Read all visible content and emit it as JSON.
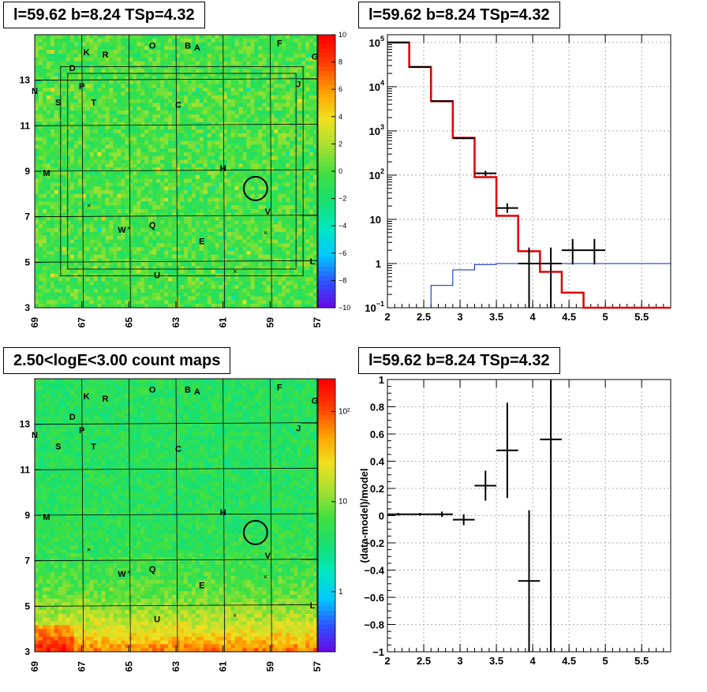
{
  "panels": {
    "tl": {
      "title": "l=59.62 b=8.24 TSp=4.32"
    },
    "tr": {
      "title": "l=59.62 b=8.24 TSp=4.32"
    },
    "bl": {
      "title": "2.50<logE<3.00 count maps"
    },
    "br": {
      "title": "l=59.62 b=8.24 TSp=4.32"
    }
  },
  "chart_data": [
    {
      "type": "heatmap",
      "id": "residual-map",
      "x_ticks": [
        "69",
        "67",
        "65",
        "63",
        "61",
        "59",
        "57"
      ],
      "xlim": [
        69,
        57
      ],
      "y_ticks": [
        "3",
        "5",
        "7",
        "9",
        "11",
        "13"
      ],
      "ylim": [
        3,
        15
      ],
      "colorbar_ticks": [
        "10",
        "8",
        "6",
        "4",
        "2",
        "0",
        "−2",
        "−4",
        "−6",
        "−8",
        "−10"
      ],
      "colorbar_range": [
        -10,
        10
      ],
      "color_scale": [
        "#7000e0",
        "#3050ff",
        "#00c8ff",
        "#00e8c0",
        "#18e070",
        "#40e040",
        "#a8e030",
        "#f0e020",
        "#ffa000",
        "#ff4000",
        "#ff0000"
      ],
      "source_labels": [
        {
          "t": "K",
          "l": 66.8,
          "b": 14.1
        },
        {
          "t": "R",
          "l": 66.0,
          "b": 14.0
        },
        {
          "t": "O",
          "l": 64.0,
          "b": 14.4
        },
        {
          "t": "B",
          "l": 62.5,
          "b": 14.4
        },
        {
          "t": "A",
          "l": 62.1,
          "b": 14.3
        },
        {
          "t": "F",
          "l": 58.6,
          "b": 14.5
        },
        {
          "t": "G",
          "l": 57.1,
          "b": 13.9
        },
        {
          "t": "D",
          "l": 67.4,
          "b": 13.4
        },
        {
          "t": "P",
          "l": 67.0,
          "b": 12.6
        },
        {
          "t": "N",
          "l": 69.0,
          "b": 12.4
        },
        {
          "t": "J",
          "l": 57.8,
          "b": 12.7
        },
        {
          "t": "S",
          "l": 68.0,
          "b": 11.9
        },
        {
          "t": "T",
          "l": 66.5,
          "b": 11.9
        },
        {
          "t": "C",
          "l": 62.9,
          "b": 11.8
        },
        {
          "t": "H",
          "l": 61.0,
          "b": 9.0
        },
        {
          "t": "M",
          "l": 68.5,
          "b": 8.8
        },
        {
          "t": "V",
          "l": 59.1,
          "b": 7.1
        },
        {
          "t": "W",
          "l": 65.3,
          "b": 6.3
        },
        {
          "t": "Q",
          "l": 64.0,
          "b": 6.5
        },
        {
          "t": "E",
          "l": 61.9,
          "b": 5.8
        },
        {
          "t": "L",
          "l": 57.2,
          "b": 4.9
        },
        {
          "t": "U",
          "l": 63.8,
          "b": 4.3
        }
      ],
      "x_markers": [
        {
          "l": 66.7,
          "b": 7.5
        },
        {
          "l": 65.0,
          "b": 6.5
        },
        {
          "l": 60.5,
          "b": 4.6
        },
        {
          "l": 59.2,
          "b": 6.3
        }
      ],
      "circle": {
        "l": 59.62,
        "b": 8.24,
        "r": 0.5
      },
      "roi_outer": [
        67.9,
        57.6,
        4.4,
        13.6
      ],
      "roi_inner": [
        67.6,
        57.9,
        4.7,
        13.3
      ]
    },
    {
      "type": "line",
      "id": "spectrum",
      "xlim": [
        2,
        5.9
      ],
      "ylim": [
        0.1,
        150000
      ],
      "y_scale": "log",
      "x_ticks": [
        "2",
        "2.5",
        "3",
        "3.5",
        "4",
        "4.5",
        "5",
        "5.5"
      ],
      "y_tick_labels": [
        "10^-1",
        "1",
        "10",
        "10^2",
        "10^3",
        "10^4",
        "10^5"
      ],
      "grid": true,
      "model_steps": {
        "edges": [
          2.0,
          2.3,
          2.6,
          2.9,
          3.2,
          3.5,
          3.8,
          4.1,
          4.4,
          4.7,
          5.9
        ],
        "values": [
          100000,
          28000,
          4700,
          700,
          90,
          12,
          1.9,
          0.65,
          0.22,
          0.1
        ]
      },
      "background_steps": {
        "edges": [
          2.6,
          2.9,
          3.2,
          3.5,
          5.9
        ],
        "values": [
          0.32,
          0.72,
          0.95,
          1.0
        ]
      },
      "data_points": [
        {
          "x": 2.15,
          "xerr": 0.15,
          "y": 100000,
          "lo": 100000,
          "hi": 100000
        },
        {
          "x": 2.45,
          "xerr": 0.15,
          "y": 28000,
          "lo": 28000,
          "hi": 28000
        },
        {
          "x": 2.75,
          "xerr": 0.15,
          "y": 4700,
          "lo": 4700,
          "hi": 4700
        },
        {
          "x": 3.05,
          "xerr": 0.15,
          "y": 680,
          "lo": 650,
          "hi": 720
        },
        {
          "x": 3.35,
          "xerr": 0.15,
          "y": 110,
          "lo": 95,
          "hi": 125
        },
        {
          "x": 3.65,
          "xerr": 0.15,
          "y": 18,
          "lo": 14,
          "hi": 23
        },
        {
          "x": 3.95,
          "xerr": 0.15,
          "y": 1,
          "lo": 0.1,
          "hi": 2.3
        },
        {
          "x": 4.25,
          "xerr": 0.15,
          "y": 1,
          "lo": 0.1,
          "hi": 2.3
        },
        {
          "x": 4.55,
          "xerr": 0.15,
          "y": 2,
          "lo": 0.95,
          "hi": 3.6
        },
        {
          "x": 4.85,
          "xerr": 0.15,
          "y": 2,
          "lo": 0.95,
          "hi": 3.6
        }
      ]
    },
    {
      "type": "heatmap",
      "id": "count-map",
      "x_ticks": [
        "69",
        "67",
        "65",
        "63",
        "61",
        "59",
        "57"
      ],
      "xlim": [
        69,
        57
      ],
      "y_ticks": [
        "3",
        "5",
        "7",
        "9",
        "11",
        "13"
      ],
      "ylim": [
        3,
        15
      ],
      "colorbar_labels": [
        {
          "t": "10²",
          "f": 0.12
        },
        {
          "t": "10",
          "f": 0.45
        },
        {
          "t": "1",
          "f": 0.78
        }
      ],
      "color_scale": [
        "#7000e0",
        "#3050ff",
        "#00c8ff",
        "#00e8c0",
        "#18e070",
        "#40e040",
        "#a8e030",
        "#f0e020",
        "#ffa000",
        "#ff4000",
        "#ff0000"
      ],
      "source_labels": [
        {
          "t": "K",
          "l": 66.8,
          "b": 14.1
        },
        {
          "t": "R",
          "l": 66.0,
          "b": 14.0
        },
        {
          "t": "O",
          "l": 64.0,
          "b": 14.4
        },
        {
          "t": "B",
          "l": 62.5,
          "b": 14.4
        },
        {
          "t": "A",
          "l": 62.1,
          "b": 14.3
        },
        {
          "t": "F",
          "l": 58.6,
          "b": 14.5
        },
        {
          "t": "G",
          "l": 57.1,
          "b": 13.9
        },
        {
          "t": "D",
          "l": 67.4,
          "b": 13.2
        },
        {
          "t": "P",
          "l": 67.0,
          "b": 12.6
        },
        {
          "t": "N",
          "l": 69.0,
          "b": 12.4
        },
        {
          "t": "J",
          "l": 57.8,
          "b": 12.7
        },
        {
          "t": "S",
          "l": 68.0,
          "b": 11.9
        },
        {
          "t": "T",
          "l": 66.5,
          "b": 11.9
        },
        {
          "t": "C",
          "l": 62.9,
          "b": 11.8
        },
        {
          "t": "H",
          "l": 61.0,
          "b": 9.0
        },
        {
          "t": "M",
          "l": 68.5,
          "b": 8.8
        },
        {
          "t": "V",
          "l": 59.1,
          "b": 7.1
        },
        {
          "t": "W",
          "l": 65.3,
          "b": 6.3
        },
        {
          "t": "Q",
          "l": 64.0,
          "b": 6.5
        },
        {
          "t": "E",
          "l": 61.9,
          "b": 5.8
        },
        {
          "t": "L",
          "l": 57.2,
          "b": 4.9
        },
        {
          "t": "U",
          "l": 63.8,
          "b": 4.3
        }
      ],
      "x_markers": [
        {
          "l": 66.7,
          "b": 7.5
        },
        {
          "l": 65.0,
          "b": 6.5
        },
        {
          "l": 60.5,
          "b": 4.6
        },
        {
          "l": 59.2,
          "b": 6.3
        }
      ],
      "circle": {
        "l": 59.62,
        "b": 8.24,
        "r": 0.5
      }
    },
    {
      "type": "scatter",
      "id": "residuals",
      "xlim": [
        2,
        5.9
      ],
      "ylim": [
        -1,
        1
      ],
      "x_ticks": [
        "2",
        "2.5",
        "3",
        "3.5",
        "4",
        "4.5",
        "5",
        "5.5"
      ],
      "y_ticks": [
        "−1",
        "−0.8",
        "−0.6",
        "−0.4",
        "−0.2",
        "0",
        "0.2",
        "0.4",
        "0.6",
        "0.8",
        "1"
      ],
      "ylabel": "(data-model)/model",
      "grid": true,
      "data_points": [
        {
          "x": 2.15,
          "xerr": 0.15,
          "y": 0.01,
          "lo": 0.0,
          "hi": 0.02
        },
        {
          "x": 2.45,
          "xerr": 0.15,
          "y": 0.01,
          "lo": 0.0,
          "hi": 0.02
        },
        {
          "x": 2.75,
          "xerr": 0.15,
          "y": 0.01,
          "lo": -0.01,
          "hi": 0.03
        },
        {
          "x": 3.05,
          "xerr": 0.15,
          "y": -0.03,
          "lo": -0.07,
          "hi": 0.01
        },
        {
          "x": 3.35,
          "xerr": 0.15,
          "y": 0.22,
          "lo": 0.11,
          "hi": 0.33
        },
        {
          "x": 3.65,
          "xerr": 0.15,
          "y": 0.48,
          "lo": 0.13,
          "hi": 0.83
        },
        {
          "x": 3.95,
          "xerr": 0.15,
          "y": -0.48,
          "lo": -1.0,
          "hi": 0.04
        },
        {
          "x": 4.25,
          "xerr": 0.15,
          "y": 0.56,
          "lo": -1.0,
          "hi": 1.0
        }
      ]
    }
  ]
}
